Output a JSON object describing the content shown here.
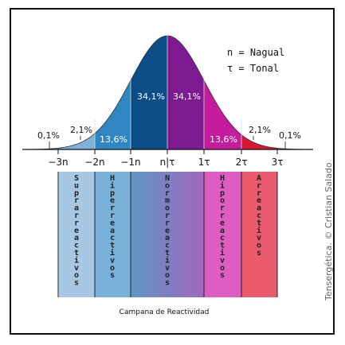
{
  "legend": {
    "line1": "n = Nagual",
    "line2": "τ = Tonal"
  },
  "percentages": {
    "left_tail": "0,1%",
    "left_mid": "2,1%",
    "left_band": "13,6%",
    "left_center": "34,1%",
    "right_center": "34,1%",
    "right_band": "13,6%",
    "right_mid": "2,1%",
    "right_tail": "0,1%"
  },
  "axis_labels": [
    "−3n",
    "−2n",
    "−1n",
    "n|τ",
    "1τ",
    "2τ",
    "3τ"
  ],
  "bands": [
    {
      "text": "Suprarreactivos",
      "color": "#a6c8e4"
    },
    {
      "text": "Hiperreactivos",
      "color": "#79b2d8"
    },
    {
      "text": "Normorreactivos",
      "color": "#8f79b8"
    },
    {
      "text": "Hiporreactivos",
      "color": "#dd5ec0"
    },
    {
      "text": "Arreactivos",
      "color": "#e85a6c"
    }
  ],
  "caption": "Campana de Reactividad",
  "copyright": "Tensergética. © Cristian Salado",
  "colors": {
    "curve_tail_left": "#7fb0d8",
    "curve_band_left": "#2f86c0",
    "curve_center_left": "#0b4d86",
    "curve_center_right": "#7e1a92",
    "curve_band_right": "#c41c9c",
    "curve_tail_right": "#d8182e"
  }
}
